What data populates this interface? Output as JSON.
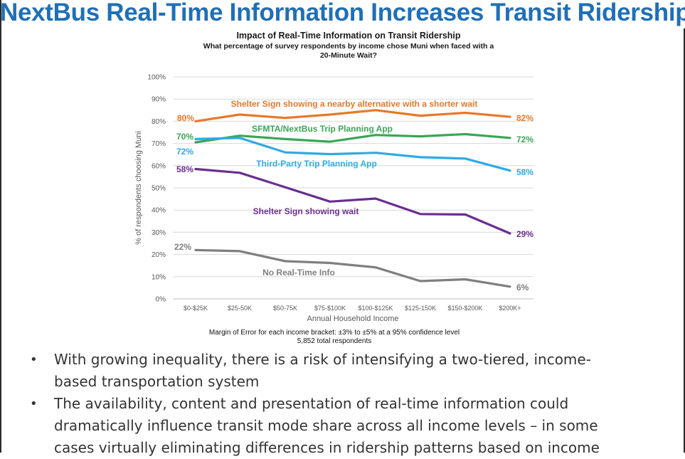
{
  "slide": {
    "title": "NextBus Real-Time Information Increases Transit Ridership"
  },
  "chart_data": {
    "type": "line",
    "title": "Impact of Real-Time Information on Transit Ridership",
    "subtitle_line1": "What percentage of survey respondents by income chose Muni when faced with a",
    "subtitle_line2": "20-Minute Wait?",
    "xlabel": "Annual Household Income",
    "ylabel": "% of respondents choosing Muni",
    "ylim": [
      0,
      100
    ],
    "yticks": [
      0,
      10,
      20,
      30,
      40,
      50,
      60,
      70,
      80,
      90,
      100
    ],
    "ytick_labels": [
      "0%",
      "10%",
      "20%",
      "30%",
      "40%",
      "50%",
      "60%",
      "70%",
      "80%",
      "90%",
      "100%"
    ],
    "grid": "horizontal",
    "categories": [
      "$0-$25K",
      "$25-50K",
      "$50-75K",
      "$75-$100K",
      "$100-$125K",
      "$125-150K",
      "$150-$200K",
      "$200K+"
    ],
    "series": [
      {
        "name": "Shelter Sign showing a nearby alternative with a shorter wait",
        "color": "#e8782a",
        "values": [
          80,
          83,
          81.5,
          83,
          85,
          82.5,
          83.8,
          82
        ],
        "start_label": "80%",
        "end_label": "82%"
      },
      {
        "name": "SFMTA/NextBus Trip Planning App",
        "color": "#3aa655",
        "values": [
          70.5,
          73.5,
          72,
          70.8,
          73.8,
          73.2,
          74.2,
          72.5
        ],
        "start_label": "70%",
        "end_label": "72%"
      },
      {
        "name": "Third-Party Trip Planning App",
        "color": "#2eaae6",
        "values": [
          72,
          72.5,
          66,
          65.2,
          65.8,
          63.8,
          63.2,
          57.8
        ],
        "start_label": "72%",
        "end_label": "58%"
      },
      {
        "name": "Shelter Sign showing wait",
        "color": "#6a2d91",
        "values": [
          58.5,
          56.8,
          50.3,
          43.8,
          45.2,
          38.2,
          38,
          29.5
        ],
        "start_label": "58%",
        "end_label": "29%"
      },
      {
        "name": "No Real-Time Info",
        "color": "#7f7f7f",
        "values": [
          22,
          21.5,
          17,
          16.2,
          14.2,
          8,
          8.8,
          5.5
        ],
        "start_label": "22%",
        "end_label": "6%"
      }
    ],
    "footnote_line1": "Margin of Error for each income bracket: ±3% to ±5% at a 95% confidence level",
    "footnote_line2": "5,852 total respondents"
  },
  "bullets": [
    {
      "line1": "With growing inequality, there is a risk of intensifying a two-tiered, income-",
      "line2": "based transportation system"
    },
    {
      "line1": "The availability, content and presentation of real-time information could",
      "line2": "dramatically influence transit mode share across all income levels – in some",
      "line3": "cases virtually eliminating differences in ridership patterns based on income"
    }
  ]
}
